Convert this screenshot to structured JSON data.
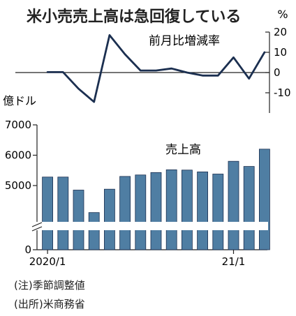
{
  "title": "米小売売上高は急回復している",
  "notes": [
    "(注)季節調整値",
    "(出所)米商務省"
  ],
  "chart_data": [
    {
      "type": "line",
      "series": [
        {
          "name": "前月比増減率",
          "values": [
            0.2,
            0.2,
            -8,
            -14.5,
            18.5,
            9,
            1,
            1,
            2,
            0,
            -1.5,
            -1.5,
            7.5,
            -3,
            10
          ]
        }
      ],
      "unit": "%",
      "ylim": [
        -20,
        20
      ],
      "yticks": [
        "20",
        "10",
        "0",
        "-10"
      ]
    },
    {
      "type": "bar",
      "series": [
        {
          "name": "売上高",
          "values": [
            5280,
            5280,
            4850,
            4110,
            4880,
            5300,
            5350,
            5430,
            5520,
            5510,
            5450,
            5380,
            5800,
            5630,
            6200
          ]
        }
      ],
      "unit": "億ドル",
      "ylim": [
        0,
        7000
      ],
      "axis_break": true,
      "yticks": [
        "7000",
        "6000",
        "5000",
        "0"
      ],
      "xticks": [
        {
          "index": 0,
          "label": "2020/1"
        },
        {
          "index": 12,
          "label": "21/1"
        }
      ],
      "bar_color": "#4f7ea3"
    }
  ]
}
